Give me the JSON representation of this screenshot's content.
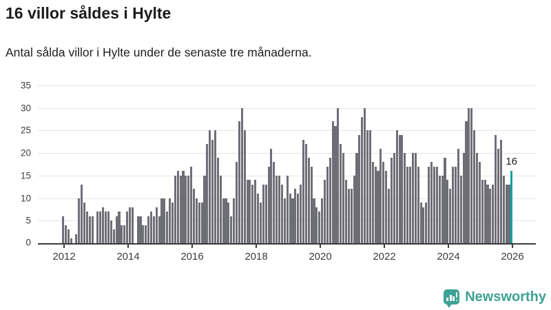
{
  "header": {
    "title": "16 villor såldes i Hylte",
    "subtitle": "Antal sålda villor i Hylte under de senaste tre månaderna."
  },
  "footer": {
    "brand": "Newsworthy",
    "brand_color": "#3fa294",
    "brand_icon": "newsworthy-chart-bubble-icon"
  },
  "chart_data": {
    "type": "bar",
    "title": "16 villor såldes i Hylte",
    "subtitle": "Antal sålda villor i Hylte under de senaste tre månaderna.",
    "xlabel": "",
    "ylabel": "",
    "ylim": [
      0,
      35
    ],
    "y_ticks": [
      0,
      5,
      10,
      15,
      20,
      25,
      30,
      35
    ],
    "x_tick_labels": [
      "2012",
      "2014",
      "2016",
      "2018",
      "2020",
      "2022",
      "2024",
      "2026"
    ],
    "grid": "horizontal",
    "legend_position": "none",
    "bar_color": "#6e6e77",
    "highlight_color": "#14a29e",
    "highlight_index": 168,
    "highlight_label": "16",
    "x_start_month": "2012-01",
    "x_end_month": "2026-01",
    "values": [
      6,
      4,
      3,
      1,
      0,
      2,
      10,
      13,
      9,
      7,
      6,
      6,
      0,
      7,
      7,
      8,
      7,
      7,
      5,
      3,
      6,
      7,
      4,
      4,
      7,
      8,
      8,
      0,
      6,
      6,
      4,
      4,
      6,
      7,
      6,
      8,
      6,
      10,
      10,
      7,
      10,
      9,
      15,
      16,
      15,
      16,
      15,
      15,
      17,
      12,
      10,
      9,
      9,
      15,
      22,
      25,
      23,
      25,
      19,
      15,
      10,
      10,
      9,
      6,
      10,
      18,
      27,
      30,
      25,
      14,
      14,
      13,
      14,
      11,
      9,
      13,
      13,
      17,
      21,
      18,
      15,
      15,
      13,
      10,
      15,
      11,
      10,
      12,
      11,
      13,
      23,
      22,
      19,
      17,
      10,
      8,
      7,
      10,
      14,
      17,
      19,
      27,
      26,
      30,
      22,
      20,
      14,
      12,
      12,
      15,
      20,
      24,
      28,
      30,
      25,
      25,
      18,
      17,
      16,
      21,
      18,
      16,
      12,
      19,
      20,
      25,
      24,
      24,
      20,
      17,
      17,
      20,
      20,
      17,
      9,
      8,
      9,
      17,
      18,
      17,
      17,
      15,
      15,
      19,
      14,
      12,
      17,
      17,
      21,
      15,
      20,
      27,
      30,
      30,
      25,
      20,
      18,
      14,
      14,
      13,
      12,
      13,
      24,
      21,
      23,
      15,
      13,
      13,
      16
    ]
  }
}
